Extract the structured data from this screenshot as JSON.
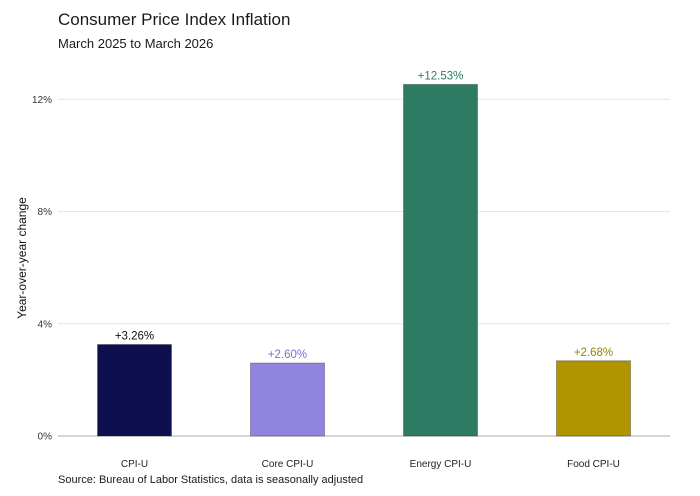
{
  "chart_data": {
    "type": "bar",
    "title": "Consumer Price Index Inflation",
    "subtitle": "March 2025 to March 2026",
    "ylabel": "Year-over-year change",
    "xlabel": "",
    "ylim": [
      0,
      13.4
    ],
    "y_ticks": [
      0,
      4,
      8,
      12
    ],
    "y_tick_labels": [
      "0%",
      "4%",
      "8%",
      "12%"
    ],
    "grid": "horizontal",
    "categories": [
      "CPI-U",
      "Core CPI-U",
      "Energy CPI-U",
      "Food CPI-U"
    ],
    "values": [
      3.26,
      2.6,
      12.53,
      2.68
    ],
    "data_labels": [
      "+3.26%",
      "+2.60%",
      "+12.53%",
      "+2.68%"
    ],
    "colors": [
      "#0d0f4f",
      "#8f85e0",
      "#2e7b63",
      "#b09400"
    ],
    "label_colors": [
      "#111111",
      "#7a70c8",
      "#2e7b63",
      "#9a8200"
    ],
    "source": "Source: Bureau of Labor Statistics, data is seasonally adjusted"
  }
}
